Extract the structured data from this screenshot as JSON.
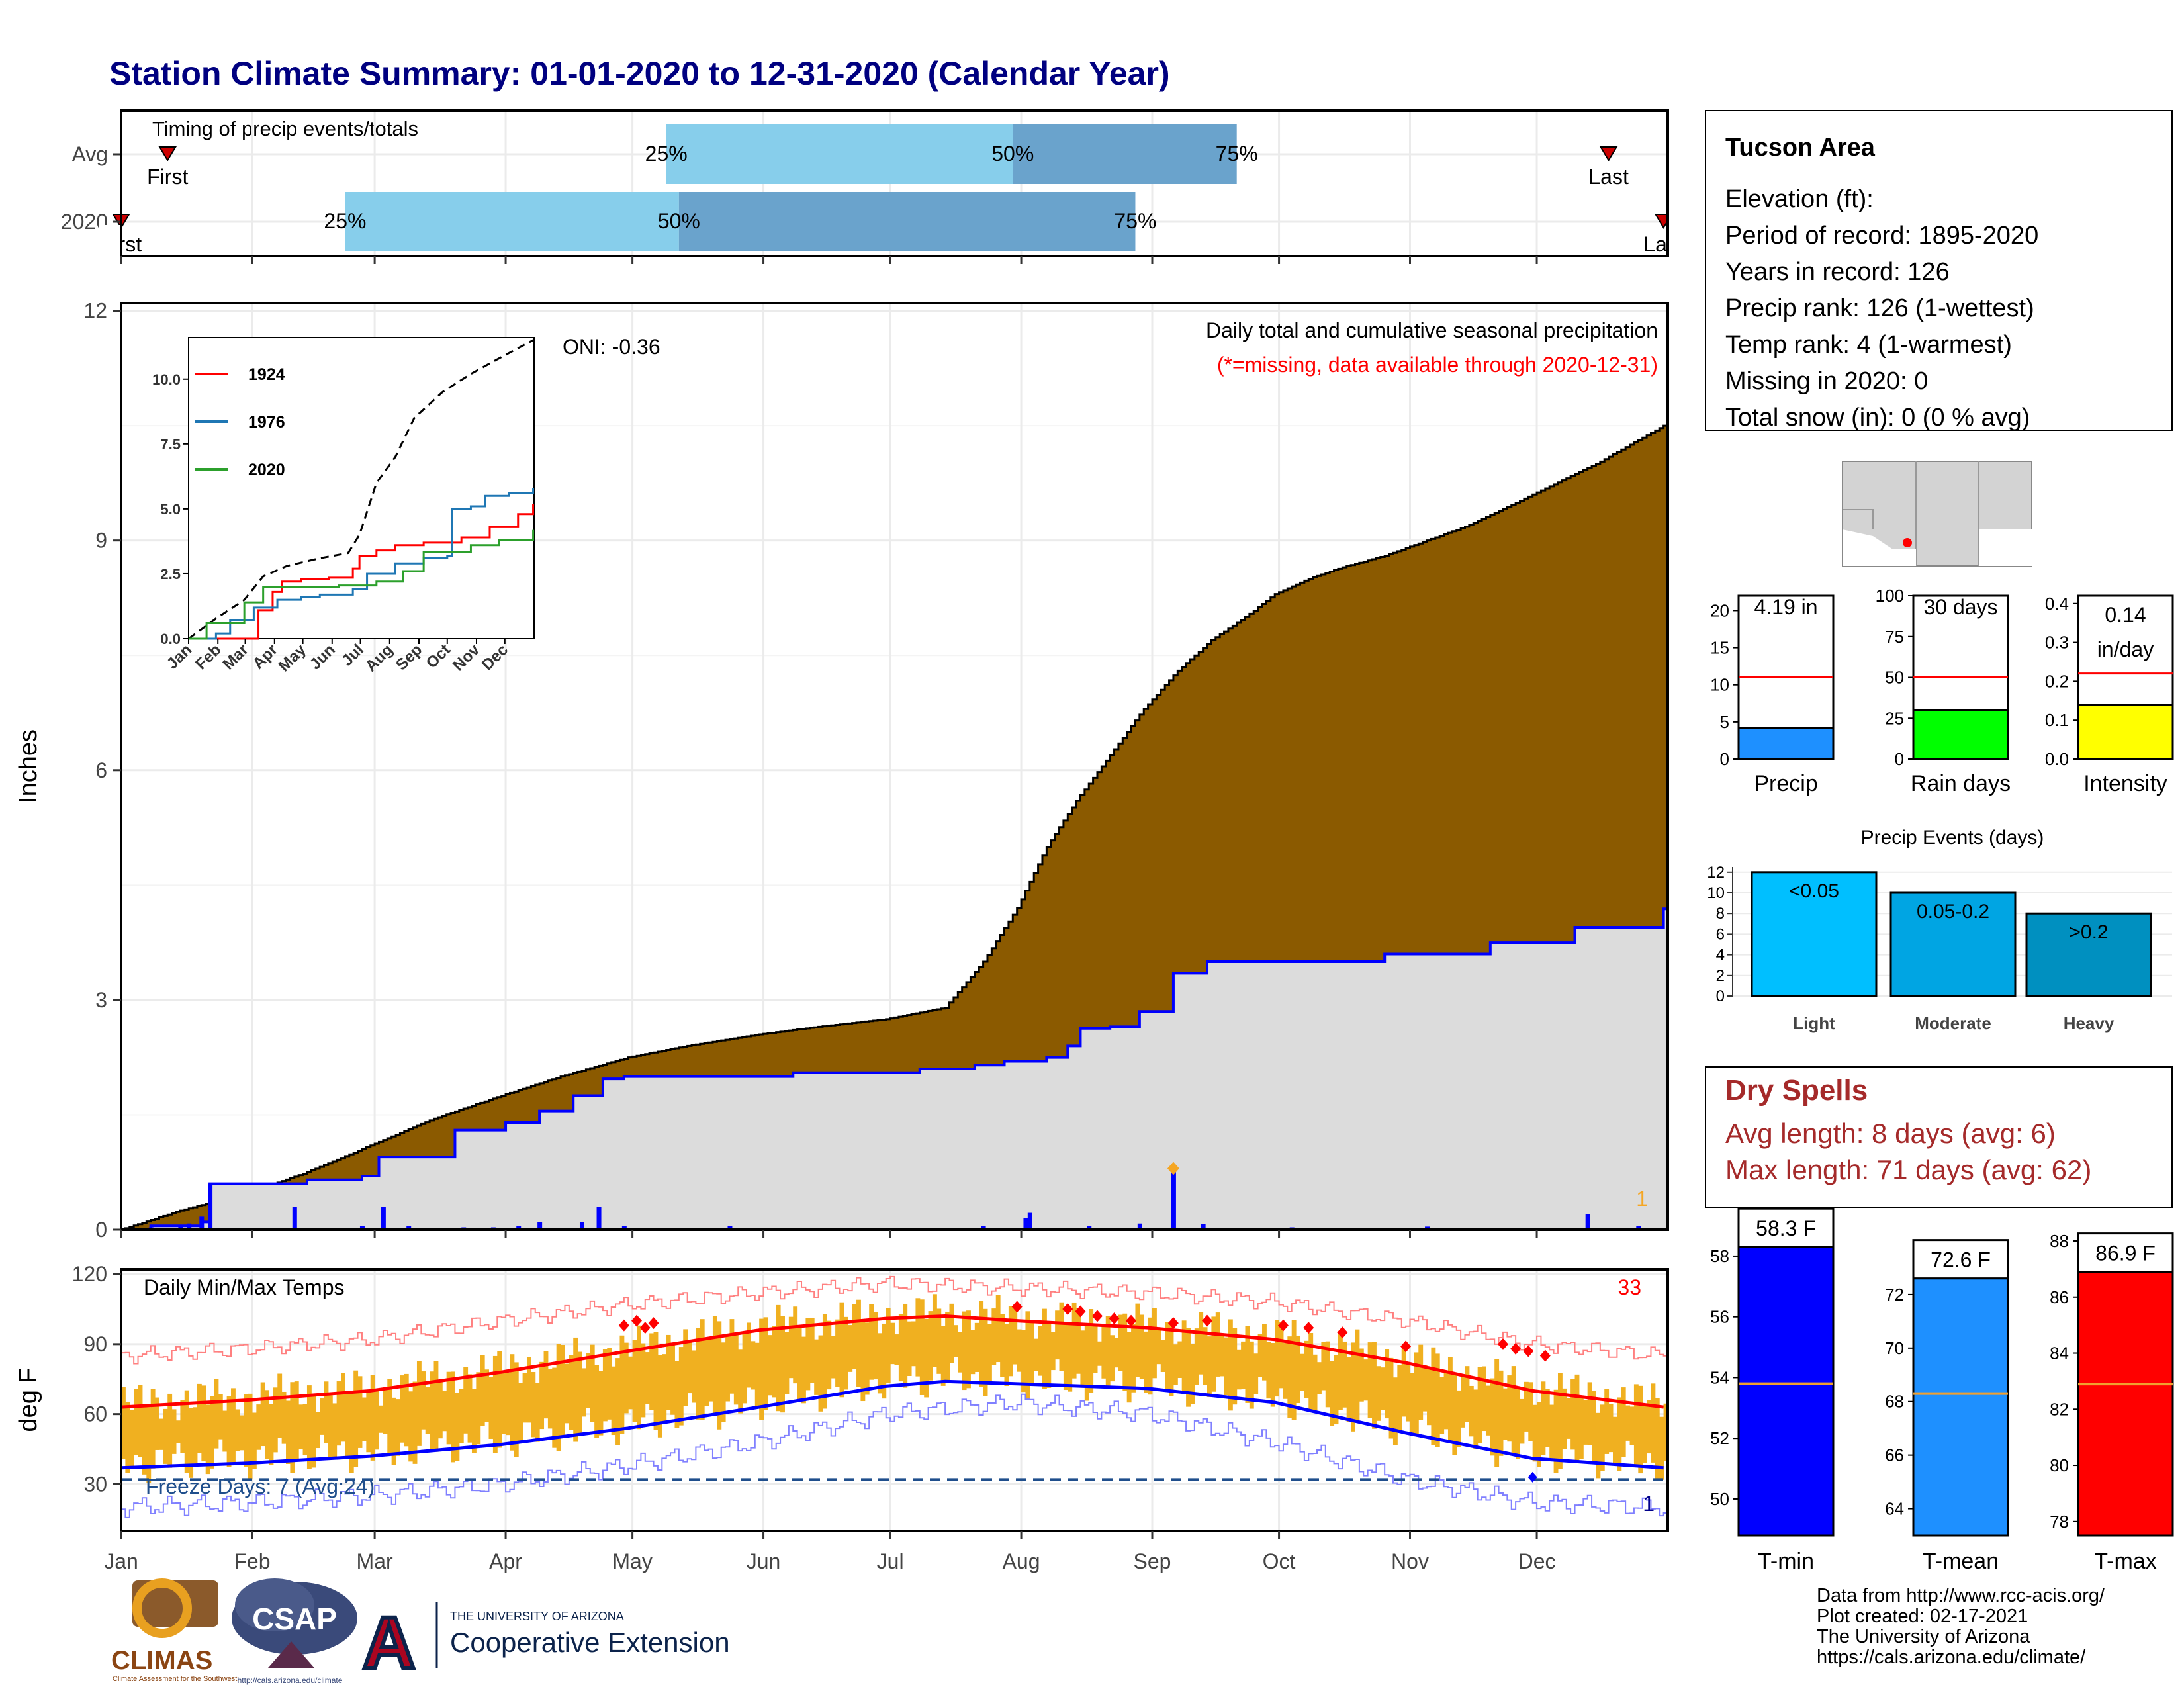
{
  "title": "Station Climate Summary: 01-01-2020 to 12-31-2020 (Calendar Year)",
  "months": [
    "Jan",
    "Feb",
    "Mar",
    "Apr",
    "May",
    "Jun",
    "Jul",
    "Aug",
    "Sep",
    "Oct",
    "Nov",
    "Dec"
  ],
  "colors": {
    "title": "#000080",
    "brown": "#8B5A00",
    "light_gray": "#dcdcdc",
    "blue": "#0000ff",
    "red": "#ff0000",
    "orange": "#f0b020",
    "light_blue": "#87ceeb",
    "mid_blue": "#6aa3cc",
    "dry_red": "#a52a2a"
  },
  "timing": {
    "title": "Timing of precip events/totals",
    "row_labels": [
      "Avg",
      "2020"
    ],
    "avg": {
      "first_doy": 12,
      "q25_doy": 130,
      "q50_doy": 212,
      "q75_doy": 265,
      "last_doy": 353,
      "first_label": "First",
      "last_label": "Last",
      "q25_label": "25%",
      "q50_label": "50%",
      "q75_label": "75%"
    },
    "y2020": {
      "first_doy": 1,
      "q25_doy": 54,
      "q50_doy": 133,
      "q75_doy": 241,
      "last_doy": 366,
      "first_label": "First",
      "last_label": "Last",
      "q25_label": "25%",
      "q50_label": "50%",
      "q75_label": "75%"
    }
  },
  "main": {
    "ylabel": "Inches",
    "yticks": [
      0,
      3,
      6,
      9,
      12
    ],
    "ylim": [
      0,
      12
    ],
    "caption1": "Daily total and cumulative seasonal precipitation",
    "caption2": "(*=missing, data available through 2020-12-31)",
    "oni": "ONI: -0.36",
    "count_label": "1",
    "avg_cum": [
      [
        1,
        0
      ],
      [
        15,
        0.25
      ],
      [
        31,
        0.48
      ],
      [
        45,
        0.75
      ],
      [
        60,
        1.1
      ],
      [
        75,
        1.45
      ],
      [
        91,
        1.75
      ],
      [
        105,
        2.0
      ],
      [
        121,
        2.25
      ],
      [
        135,
        2.4
      ],
      [
        152,
        2.55
      ],
      [
        166,
        2.65
      ],
      [
        182,
        2.75
      ],
      [
        196,
        2.9
      ],
      [
        205,
        3.5
      ],
      [
        213,
        4.2
      ],
      [
        220,
        5.0
      ],
      [
        227,
        5.6
      ],
      [
        235,
        6.2
      ],
      [
        243,
        6.8
      ],
      [
        251,
        7.3
      ],
      [
        259,
        7.7
      ],
      [
        267,
        8.0
      ],
      [
        274,
        8.3
      ],
      [
        282,
        8.5
      ],
      [
        290,
        8.65
      ],
      [
        300,
        8.8
      ],
      [
        305,
        8.9
      ],
      [
        320,
        9.2
      ],
      [
        335,
        9.6
      ],
      [
        350,
        10.0
      ],
      [
        366,
        10.5
      ]
    ],
    "y2020_cum": [
      [
        1,
        0
      ],
      [
        8,
        0.05
      ],
      [
        20,
        0.1
      ],
      [
        22,
        0.6
      ],
      [
        45,
        0.65
      ],
      [
        58,
        0.7
      ],
      [
        62,
        0.95
      ],
      [
        80,
        1.3
      ],
      [
        92,
        1.4
      ],
      [
        100,
        1.55
      ],
      [
        108,
        1.75
      ],
      [
        115,
        1.97
      ],
      [
        120,
        2.0
      ],
      [
        155,
        2.0
      ],
      [
        160,
        2.05
      ],
      [
        190,
        2.1
      ],
      [
        203,
        2.15
      ],
      [
        210,
        2.2
      ],
      [
        220,
        2.25
      ],
      [
        225,
        2.4
      ],
      [
        228,
        2.63
      ],
      [
        235,
        2.65
      ],
      [
        242,
        2.85
      ],
      [
        250,
        3.35
      ],
      [
        258,
        3.5
      ],
      [
        300,
        3.6
      ],
      [
        325,
        3.75
      ],
      [
        345,
        3.95
      ],
      [
        366,
        4.19
      ]
    ],
    "daily": [
      [
        8,
        0.03
      ],
      [
        15,
        0.05
      ],
      [
        17,
        0.08
      ],
      [
        20,
        0.17
      ],
      [
        22,
        0.6
      ],
      [
        42,
        0.3
      ],
      [
        58,
        0.05
      ],
      [
        63,
        0.3
      ],
      [
        69,
        0.05
      ],
      [
        82,
        0.03
      ],
      [
        89,
        0.03
      ],
      [
        95,
        0.05
      ],
      [
        100,
        0.1
      ],
      [
        110,
        0.1
      ],
      [
        114,
        0.3
      ],
      [
        120,
        0.05
      ],
      [
        145,
        0.05
      ],
      [
        180,
        0.02
      ],
      [
        205,
        0.05
      ],
      [
        215,
        0.15
      ],
      [
        216,
        0.22
      ],
      [
        230,
        0.05
      ],
      [
        242,
        0.08
      ],
      [
        250,
        0.75
      ],
      [
        257,
        0.07
      ],
      [
        278,
        0.03
      ],
      [
        310,
        0.04
      ],
      [
        348,
        0.2
      ],
      [
        360,
        0.05
      ]
    ],
    "max_marker": {
      "doy": 250,
      "value": 0.8
    }
  },
  "inset": {
    "yticks": [
      "0.0",
      "2.5",
      "5.0",
      "7.5",
      "10.0"
    ],
    "months": [
      "Jan",
      "Feb",
      "Mar",
      "Apr",
      "May",
      "Jun",
      "Jul",
      "Aug",
      "Sep",
      "Oct",
      "Nov",
      "Dec"
    ],
    "legend": [
      "1924",
      "1976",
      "2020"
    ],
    "series_colors": [
      "#ff0000",
      "#1f77b4",
      "#2ca02c"
    ],
    "avg": [
      [
        1,
        0
      ],
      [
        31,
        0.8
      ],
      [
        60,
        1.5
      ],
      [
        80,
        2.4
      ],
      [
        105,
        2.8
      ],
      [
        140,
        3.1
      ],
      [
        170,
        3.3
      ],
      [
        182,
        4.0
      ],
      [
        200,
        6.0
      ],
      [
        220,
        7.0
      ],
      [
        240,
        8.5
      ],
      [
        270,
        9.5
      ],
      [
        300,
        10.2
      ],
      [
        330,
        10.8
      ],
      [
        366,
        11.5
      ]
    ],
    "s1924": [
      [
        1,
        0
      ],
      [
        60,
        0
      ],
      [
        75,
        1.1
      ],
      [
        90,
        1.8
      ],
      [
        100,
        2.2
      ],
      [
        120,
        2.3
      ],
      [
        150,
        2.35
      ],
      [
        175,
        2.7
      ],
      [
        182,
        3.2
      ],
      [
        200,
        3.4
      ],
      [
        220,
        3.6
      ],
      [
        250,
        3.7
      ],
      [
        290,
        3.9
      ],
      [
        320,
        4.3
      ],
      [
        350,
        4.8
      ],
      [
        366,
        5.2
      ]
    ],
    "s1976": [
      [
        1,
        0
      ],
      [
        30,
        0.2
      ],
      [
        45,
        0.7
      ],
      [
        70,
        1.2
      ],
      [
        95,
        1.5
      ],
      [
        120,
        1.6
      ],
      [
        140,
        1.7
      ],
      [
        175,
        1.9
      ],
      [
        190,
        2.5
      ],
      [
        220,
        2.9
      ],
      [
        250,
        3.1
      ],
      [
        275,
        3.2
      ],
      [
        280,
        5.0
      ],
      [
        300,
        5.1
      ],
      [
        315,
        5.5
      ],
      [
        340,
        5.6
      ],
      [
        366,
        5.8
      ]
    ],
    "s2020": [
      [
        1,
        0
      ],
      [
        20,
        0.6
      ],
      [
        60,
        1.4
      ],
      [
        80,
        2.0
      ],
      [
        120,
        2.0
      ],
      [
        160,
        2.05
      ],
      [
        200,
        2.2
      ],
      [
        228,
        2.6
      ],
      [
        250,
        3.35
      ],
      [
        300,
        3.6
      ],
      [
        330,
        3.8
      ],
      [
        366,
        4.19
      ]
    ]
  },
  "temps": {
    "title": "Daily Min/Max Temps",
    "ylabel": "deg F",
    "yticks": [
      30,
      60,
      90,
      120
    ],
    "ylim": [
      10,
      122
    ],
    "count_label": "33",
    "freeze_label": "Freeze Days: 7 (Avg:24)",
    "freeze_count": "1",
    "freeze_line": 32,
    "normal_max": [
      [
        1,
        63
      ],
      [
        31,
        66
      ],
      [
        60,
        70
      ],
      [
        91,
        78
      ],
      [
        121,
        87
      ],
      [
        152,
        96
      ],
      [
        182,
        101
      ],
      [
        196,
        102
      ],
      [
        213,
        100
      ],
      [
        244,
        97
      ],
      [
        274,
        92
      ],
      [
        305,
        82
      ],
      [
        335,
        70
      ],
      [
        366,
        63
      ]
    ],
    "normal_min": [
      [
        1,
        37
      ],
      [
        31,
        39
      ],
      [
        60,
        42
      ],
      [
        91,
        47
      ],
      [
        121,
        54
      ],
      [
        152,
        63
      ],
      [
        182,
        72
      ],
      [
        196,
        74
      ],
      [
        213,
        73
      ],
      [
        244,
        71
      ],
      [
        274,
        65
      ],
      [
        305,
        52
      ],
      [
        335,
        41
      ],
      [
        366,
        37
      ]
    ],
    "record_max": [
      [
        1,
        85
      ],
      [
        31,
        88
      ],
      [
        60,
        92
      ],
      [
        91,
        100
      ],
      [
        121,
        107
      ],
      [
        152,
        112
      ],
      [
        182,
        116
      ],
      [
        213,
        114
      ],
      [
        244,
        112
      ],
      [
        274,
        108
      ],
      [
        305,
        100
      ],
      [
        335,
        90
      ],
      [
        366,
        85
      ]
    ],
    "record_min": [
      [
        1,
        20
      ],
      [
        31,
        22
      ],
      [
        60,
        25
      ],
      [
        91,
        30
      ],
      [
        121,
        38
      ],
      [
        152,
        48
      ],
      [
        182,
        60
      ],
      [
        213,
        65
      ],
      [
        244,
        60
      ],
      [
        274,
        48
      ],
      [
        305,
        32
      ],
      [
        335,
        22
      ],
      [
        366,
        20
      ]
    ],
    "record_markers": [
      [
        120,
        98
      ],
      [
        123,
        100
      ],
      [
        125,
        97
      ],
      [
        127,
        99
      ],
      [
        213,
        106
      ],
      [
        225,
        105
      ],
      [
        228,
        104
      ],
      [
        232,
        102
      ],
      [
        236,
        101
      ],
      [
        240,
        100
      ],
      [
        250,
        99
      ],
      [
        258,
        100
      ],
      [
        276,
        98
      ],
      [
        282,
        97
      ],
      [
        290,
        95
      ],
      [
        305,
        89
      ],
      [
        328,
        90
      ],
      [
        331,
        88
      ],
      [
        334,
        87
      ],
      [
        338,
        85
      ]
    ],
    "freeze_marker": [
      335,
      33
    ]
  },
  "station": {
    "name": "Tucson Area",
    "lines": [
      "Elevation (ft):",
      "Period of record: 1895-2020",
      "Years in record: 126",
      "Precip rank: 126 (1-wettest)",
      "Temp rank: 4 (1-warmest)",
      "Missing in 2020: 0",
      "Total snow (in): 0 (0 % avg)"
    ]
  },
  "gauges": [
    {
      "label": "Precip",
      "value_label": "4.19 in",
      "value": 4.19,
      "avg": 11,
      "max": 22,
      "ticks": [
        "0",
        "5",
        "10",
        "15",
        "20"
      ],
      "tick_vals": [
        0,
        5,
        10,
        15,
        20
      ],
      "color": "#1e90ff"
    },
    {
      "label": "Rain days",
      "value_label": "30 days",
      "value": 30,
      "avg": 50,
      "max": 100,
      "ticks": [
        "0",
        "25",
        "50",
        "75",
        "100"
      ],
      "tick_vals": [
        0,
        25,
        50,
        75,
        100
      ],
      "color": "#00ff00"
    },
    {
      "label": "Intensity",
      "value_label": "0.14",
      "value_label2": "in/day",
      "value": 0.14,
      "avg": 0.22,
      "max": 0.42,
      "ticks": [
        "0.0",
        "0.1",
        "0.2",
        "0.3",
        "0.4"
      ],
      "tick_vals": [
        0,
        0.1,
        0.2,
        0.3,
        0.4
      ],
      "color": "#ffff00"
    }
  ],
  "events": {
    "title": "Precip Events (days)",
    "yticks": [
      "0",
      "2",
      "4",
      "6",
      "8",
      "10",
      "12"
    ],
    "ymax": 12.5,
    "bars": [
      {
        "label": "Light",
        "value_label": "<0.05",
        "value": 12,
        "color": "#00bfff"
      },
      {
        "label": "Moderate",
        "value_label": "0.05-0.2",
        "value": 10,
        "color": "#00a5e3"
      },
      {
        "label": "Heavy",
        "value_label": ">0.2",
        "value": 8,
        "color": "#0090c0"
      }
    ]
  },
  "dry_spells": {
    "title": "Dry Spells",
    "avg_line": "Avg length: 8 days (avg: 6)",
    "max_line": "Max length: 71 days (avg: 62)"
  },
  "temp_bars": [
    {
      "label": "T-min",
      "value_label": "58.3 F",
      "value": 58.3,
      "avg": 53.8,
      "range": [
        48.8,
        58.5
      ],
      "ticks": [
        "50",
        "52",
        "54",
        "56",
        "58"
      ],
      "tick_vals": [
        50,
        52,
        54,
        56,
        58
      ],
      "color": "#0000ff"
    },
    {
      "label": "T-mean",
      "value_label": "72.6 F",
      "value": 72.6,
      "avg": 68.3,
      "range": [
        63.0,
        74.0
      ],
      "ticks": [
        "64",
        "66",
        "68",
        "70",
        "72"
      ],
      "tick_vals": [
        64,
        66,
        68,
        70,
        72
      ],
      "color": "#1e90ff"
    },
    {
      "label": "T-max",
      "value_label": "86.9 F",
      "value": 86.9,
      "avg": 82.9,
      "range": [
        77.5,
        88.0
      ],
      "ticks": [
        "78",
        "80",
        "82",
        "84",
        "86",
        "88"
      ],
      "tick_vals": [
        78,
        80,
        82,
        84,
        86,
        88
      ],
      "color": "#ff0000"
    }
  ],
  "credits": [
    "Data from http://www.rcc-acis.org/",
    "Plot created: 02-17-2021",
    "The University of Arizona",
    "https://cals.arizona.edu/climate/"
  ],
  "logos": {
    "climas": "CLIMAS",
    "climas_sub": "Climate Assessment for the Southwest",
    "csap": "CSAP",
    "csap_url": "http://cals.arizona.edu/climate",
    "ua_small": "THE UNIVERSITY OF ARIZONA",
    "ua_big": "Cooperative Extension"
  }
}
